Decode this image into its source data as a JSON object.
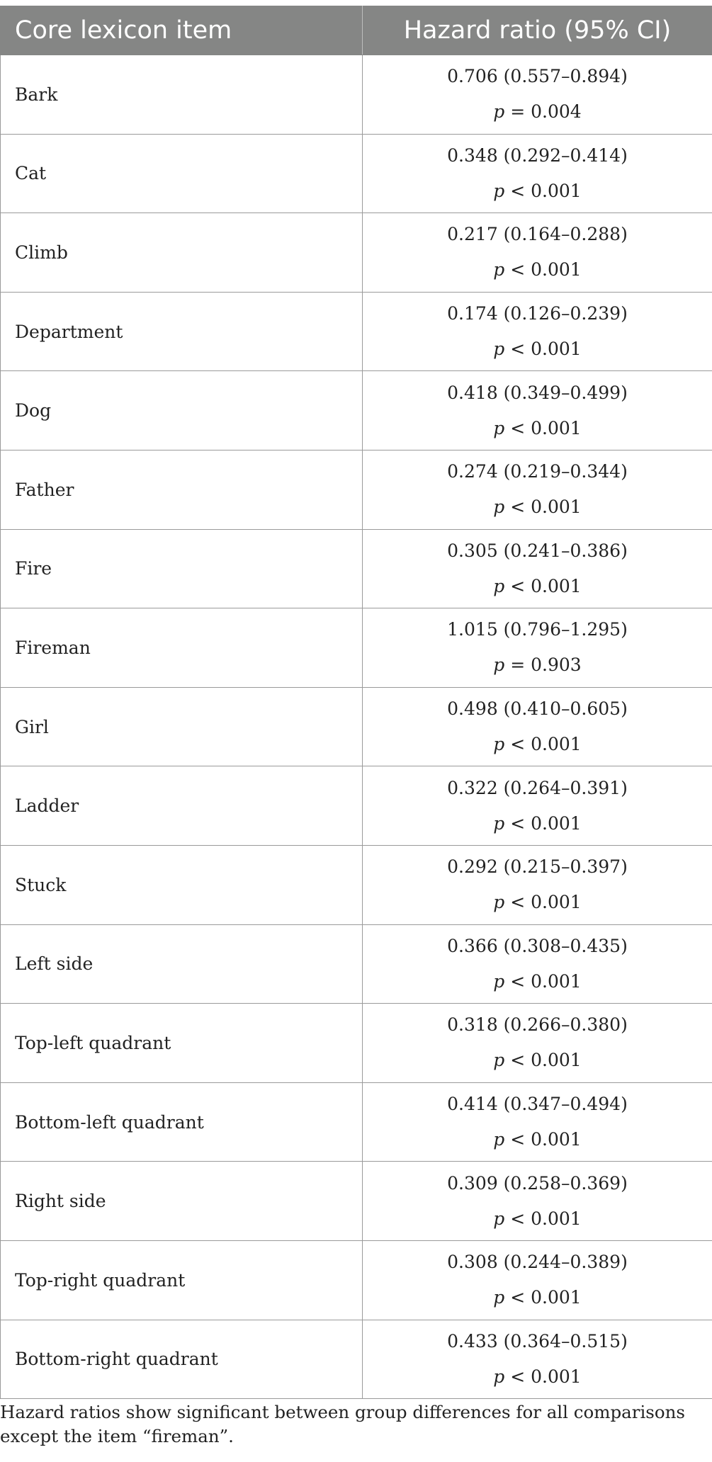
{
  "table": {
    "headers": [
      "Core lexicon item",
      "Hazard ratio (95% CI)"
    ],
    "rows": [
      {
        "item": "Bark",
        "hr": "0.706 (0.557–0.894)",
        "p_var": "p",
        "p_rest": " = 0.004"
      },
      {
        "item": "Cat",
        "hr": "0.348 (0.292–0.414)",
        "p_var": "p",
        "p_rest": " < 0.001"
      },
      {
        "item": "Climb",
        "hr": "0.217 (0.164–0.288)",
        "p_var": "p",
        "p_rest": " < 0.001"
      },
      {
        "item": "Department",
        "hr": "0.174 (0.126–0.239)",
        "p_var": "p",
        "p_rest": " < 0.001"
      },
      {
        "item": "Dog",
        "hr": "0.418 (0.349–0.499)",
        "p_var": "p",
        "p_rest": " < 0.001"
      },
      {
        "item": "Father",
        "hr": "0.274 (0.219–0.344)",
        "p_var": "p",
        "p_rest": " < 0.001"
      },
      {
        "item": "Fire",
        "hr": "0.305 (0.241–0.386)",
        "p_var": "p",
        "p_rest": " < 0.001"
      },
      {
        "item": "Fireman",
        "hr": "1.015 (0.796–1.295)",
        "p_var": "p",
        "p_rest": " = 0.903"
      },
      {
        "item": "Girl",
        "hr": "0.498 (0.410–0.605)",
        "p_var": "p",
        "p_rest": " < 0.001"
      },
      {
        "item": "Ladder",
        "hr": "0.322 (0.264–0.391)",
        "p_var": "p",
        "p_rest": " < 0.001"
      },
      {
        "item": "Stuck",
        "hr": "0.292 (0.215–0.397)",
        "p_var": "p",
        "p_rest": " < 0.001"
      },
      {
        "item": "Left side",
        "hr": "0.366 (0.308–0.435)",
        "p_var": "p",
        "p_rest": " < 0.001"
      },
      {
        "item": "Top-left quadrant",
        "hr": "0.318 (0.266–0.380)",
        "p_var": "p",
        "p_rest": " < 0.001"
      },
      {
        "item": "Bottom-left quadrant",
        "hr": "0.414 (0.347–0.494)",
        "p_var": "p",
        "p_rest": " < 0.001"
      },
      {
        "item": "Right side",
        "hr": "0.309 (0.258–0.369)",
        "p_var": "p",
        "p_rest": " < 0.001"
      },
      {
        "item": "Top-right quadrant",
        "hr": "0.308 (0.244–0.389)",
        "p_var": "p",
        "p_rest": " < 0.001"
      },
      {
        "item": "Bottom-right quadrant",
        "hr": "0.433 (0.364–0.515)",
        "p_var": "p",
        "p_rest": " < 0.001"
      }
    ]
  },
  "footnote": "Hazard ratios show significant between group differences for all comparisons except the item “fireman”.",
  "colors": {
    "header_bg": "#858685",
    "header_text": "#ffffff",
    "grid": "#9a9a9a"
  }
}
